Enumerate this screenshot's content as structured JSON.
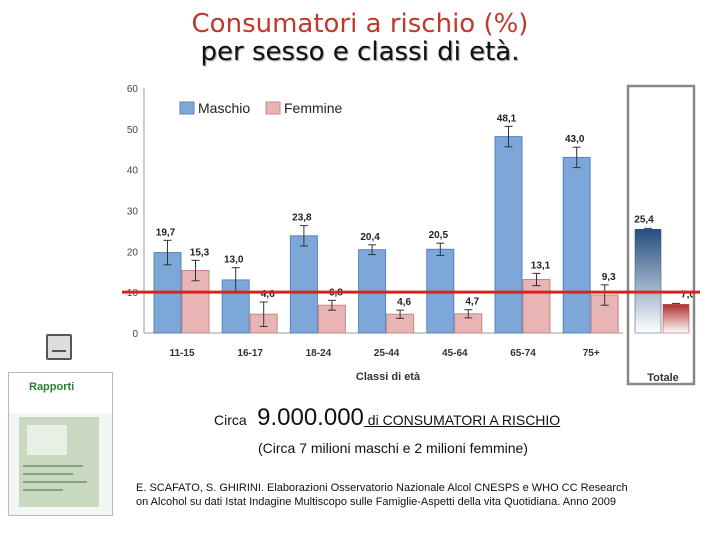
{
  "title": "Consumatori a rischio (%)",
  "subtitle": "per sesso e classi di età.",
  "summary": {
    "prefix": "Circa",
    "count": "9.000.000",
    "label": " di  CONSUMATORI A RISCHIO",
    "detail": "(Circa 7 milioni maschi e 2 milioni femmine)"
  },
  "reference": {
    "line1": "E. SCAFATO, S. GHIRINI. Elaborazioni Osservatorio Nazionale Alcol CNESPS e WHO CC Research",
    "line2": "on Alcohol su dati Istat Indagine Multiscopo sulle Famiglie-Aspetti della vita Quotidiana. Anno 2009"
  },
  "chart_data": {
    "type": "bar",
    "title": "",
    "xlabel": "Classi di età",
    "ylabel": "",
    "ylim": [
      0,
      60
    ],
    "y_ticks": [
      "0",
      "10",
      "20",
      "30",
      "40",
      "50",
      "60"
    ],
    "categories": [
      "11-15",
      "16-17",
      "18-24",
      "25-44",
      "45-64",
      "65-74",
      "75+"
    ],
    "series": [
      {
        "name": "Maschio",
        "color": "#7da7d9",
        "values": [
          19.7,
          13.0,
          23.8,
          20.4,
          20.5,
          48.1,
          43.0
        ],
        "labels": [
          "19,7",
          "13,0",
          "23,8",
          "20,4",
          "20,5",
          "48,1",
          "43,0"
        ],
        "err": [
          3.0,
          3.0,
          2.5,
          1.2,
          1.5,
          2.5,
          2.5
        ]
      },
      {
        "name": "Femmine",
        "color": "#e8b4b4",
        "values": [
          15.3,
          4.6,
          6.8,
          4.6,
          4.7,
          13.1,
          9.3
        ],
        "labels": [
          "15,3",
          "4,6",
          "6,8",
          "4,6",
          "4,7",
          "13,1",
          "9,3"
        ],
        "err": [
          2.5,
          3.0,
          1.2,
          1.0,
          1.0,
          1.5,
          2.5
        ]
      }
    ],
    "totals": {
      "category": "Totale",
      "values": [
        25.4,
        7.0
      ],
      "labels": [
        "25,4",
        "7,0"
      ],
      "colors": [
        "#254e80",
        "#b03030"
      ]
    },
    "reference_line": 10,
    "grid": false,
    "legend_position": "top-left"
  }
}
